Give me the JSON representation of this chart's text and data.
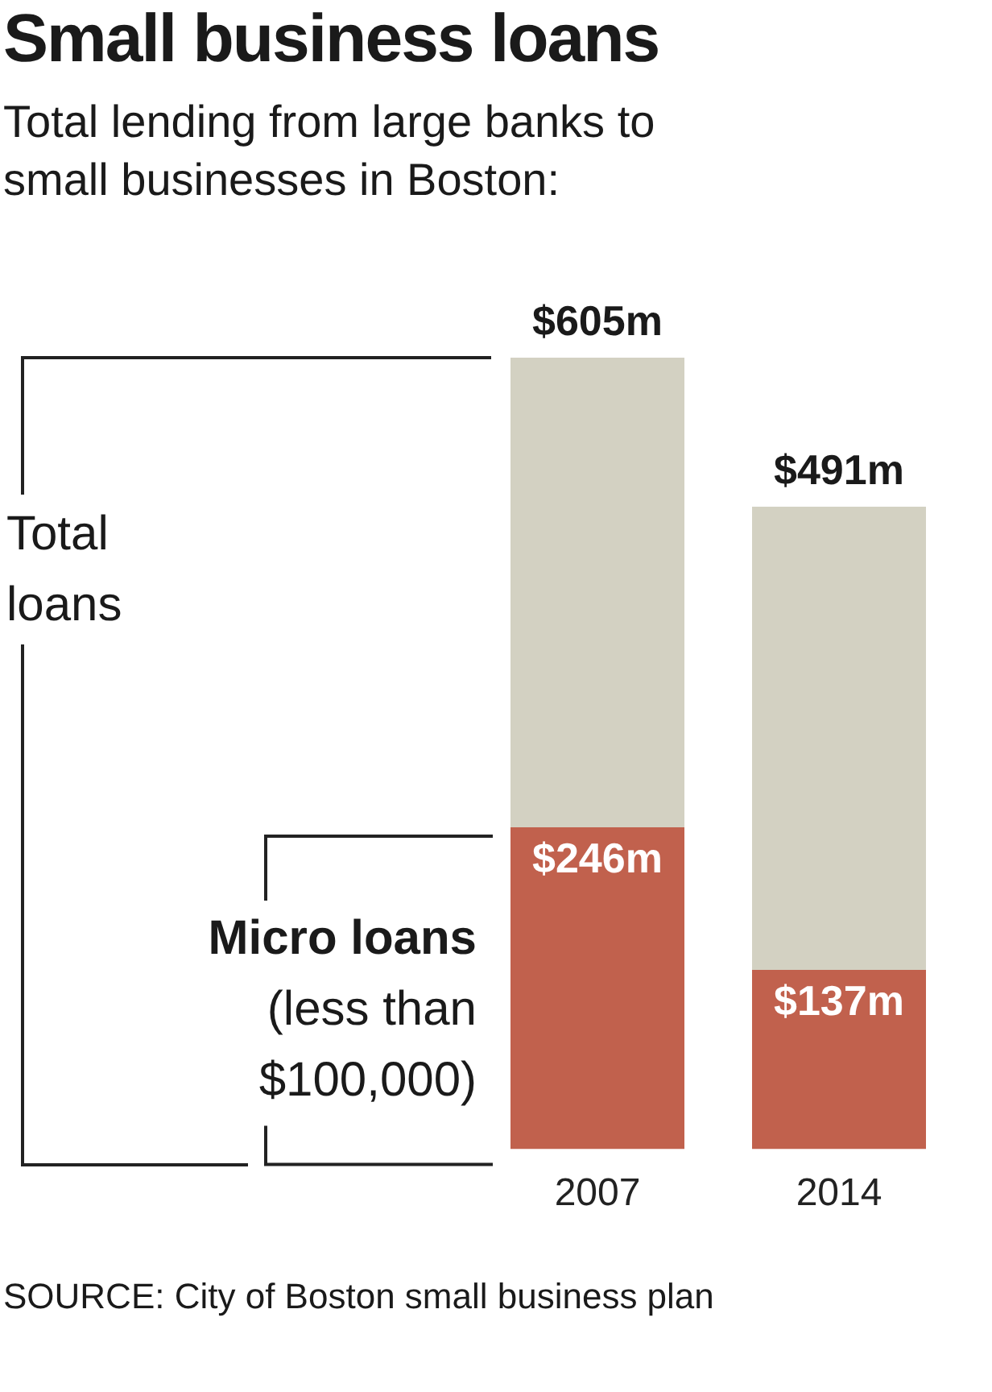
{
  "chart_data": {
    "type": "bar",
    "title": "Small business loans",
    "subtitle": "Total lending from large banks to small businesses in Boston:",
    "categories": [
      "2007",
      "2014"
    ],
    "stacked": true,
    "series": [
      {
        "name": "Micro loans",
        "color": "#c1614d",
        "values": [
          246,
          137
        ],
        "value_labels": [
          "$246m",
          "$137m"
        ]
      },
      {
        "color": "#d3d1c2",
        "values": [
          359,
          354
        ]
      }
    ],
    "totals": [
      "$605m",
      "$491m"
    ],
    "annotations": [
      "Total loans",
      "(less than $100,000)",
      "SOURCE: City of Boston small business plan"
    ],
    "legend": false,
    "grid": false
  }
}
